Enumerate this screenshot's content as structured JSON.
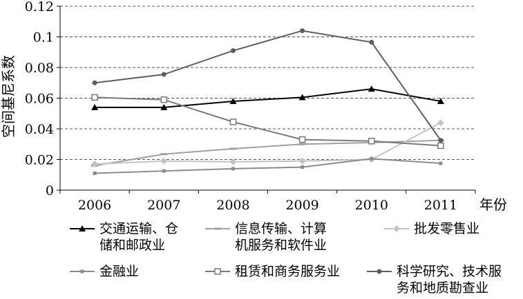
{
  "chart_data": {
    "type": "line",
    "ylabel": "空间基尼系数",
    "xlabel": "年份",
    "categories": [
      "2006",
      "2007",
      "2008",
      "2009",
      "2010",
      "2011"
    ],
    "ylim": [
      0,
      0.12
    ],
    "yticks": [
      "0",
      "0.02",
      "0.04",
      "0.06",
      "0.08",
      "0.1",
      "0.12"
    ],
    "grid": "horizontal-dashed",
    "legend_position": "bottom",
    "series": [
      {
        "name": "交通运输、仓\n储和邮政业",
        "values": [
          0.054,
          0.054,
          0.058,
          0.0605,
          0.066,
          0.058
        ],
        "color": "#000000",
        "marker": "triangle"
      },
      {
        "name": "信息传输、计算\n机服务和软件业",
        "values": [
          0.016,
          0.0235,
          0.027,
          0.03,
          0.031,
          0.0325
        ],
        "color": "#a0a0a0",
        "marker": "dash"
      },
      {
        "name": "批发零售业",
        "values": [
          0.017,
          0.019,
          0.0185,
          0.019,
          0.02,
          0.044
        ],
        "color": "#c4c4c4",
        "marker": "diamond"
      },
      {
        "name": "金融业",
        "values": [
          0.011,
          0.0125,
          0.014,
          0.015,
          0.0205,
          0.0175
        ],
        "color": "#8a8a8a",
        "marker": "small-square"
      },
      {
        "name": "租赁和商务服务业",
        "values": [
          0.0605,
          0.059,
          0.0445,
          0.033,
          0.032,
          0.029
        ],
        "color": "#787878",
        "marker": "open-square"
      },
      {
        "name": "科学研究、技术服\n务和地质勘查业",
        "values": [
          0.07,
          0.0755,
          0.091,
          0.104,
          0.0965,
          0.0325
        ],
        "color": "#5e5e5e",
        "marker": "circle"
      }
    ]
  }
}
